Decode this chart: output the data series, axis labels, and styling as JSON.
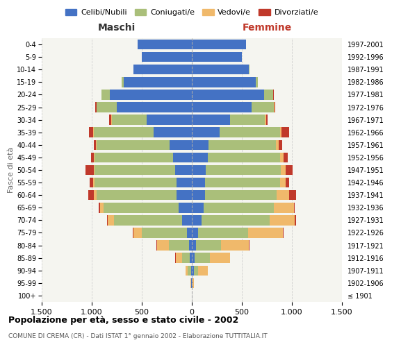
{
  "age_groups": [
    "100+",
    "95-99",
    "90-94",
    "85-89",
    "80-84",
    "75-79",
    "70-74",
    "65-69",
    "60-64",
    "55-59",
    "50-54",
    "45-49",
    "40-44",
    "35-39",
    "30-34",
    "25-29",
    "20-24",
    "15-19",
    "10-14",
    "5-9",
    "0-4"
  ],
  "birth_years": [
    "≤ 1901",
    "1902-1906",
    "1907-1911",
    "1912-1916",
    "1917-1921",
    "1922-1926",
    "1927-1931",
    "1932-1936",
    "1937-1941",
    "1942-1946",
    "1947-1951",
    "1952-1956",
    "1957-1961",
    "1962-1966",
    "1967-1971",
    "1972-1976",
    "1977-1981",
    "1982-1986",
    "1987-1991",
    "1992-1996",
    "1997-2001"
  ],
  "colors": {
    "celibi": "#4472C4",
    "coniugati": "#AABF7A",
    "vedovi": "#F0B96B",
    "divorziati": "#C0392B"
  },
  "maschi": {
    "celibi": [
      2,
      5,
      10,
      20,
      30,
      50,
      100,
      130,
      150,
      150,
      170,
      190,
      220,
      380,
      450,
      750,
      820,
      680,
      580,
      500,
      540
    ],
    "coniugati": [
      0,
      5,
      30,
      80,
      200,
      450,
      680,
      750,
      800,
      820,
      800,
      780,
      730,
      600,
      350,
      200,
      80,
      20,
      5,
      0,
      0
    ],
    "vedovi": [
      0,
      5,
      20,
      60,
      120,
      80,
      60,
      40,
      30,
      15,
      10,
      8,
      5,
      5,
      3,
      2,
      0,
      0,
      0,
      0,
      0
    ],
    "divorziati": [
      0,
      0,
      0,
      5,
      5,
      10,
      10,
      10,
      55,
      35,
      80,
      30,
      25,
      45,
      20,
      10,
      5,
      0,
      0,
      0,
      0
    ]
  },
  "femmine": {
    "nubili": [
      2,
      5,
      20,
      30,
      40,
      60,
      100,
      120,
      130,
      130,
      140,
      160,
      170,
      280,
      380,
      600,
      720,
      640,
      570,
      500,
      540
    ],
    "coniugate": [
      0,
      5,
      40,
      150,
      250,
      500,
      680,
      700,
      720,
      750,
      750,
      720,
      670,
      600,
      350,
      220,
      90,
      20,
      5,
      0,
      0
    ],
    "vedove": [
      0,
      10,
      100,
      200,
      280,
      350,
      250,
      200,
      120,
      60,
      50,
      40,
      30,
      15,
      10,
      5,
      3,
      0,
      0,
      0,
      0
    ],
    "divorziate": [
      0,
      0,
      0,
      5,
      5,
      10,
      10,
      10,
      70,
      35,
      70,
      40,
      30,
      80,
      20,
      10,
      5,
      0,
      0,
      0,
      0
    ]
  },
  "xlim": [
    -1500,
    1500
  ],
  "xticks": [
    -1500,
    -1000,
    -500,
    0,
    500,
    1000,
    1500
  ],
  "xticklabels": [
    "1.500",
    "1.000",
    "500",
    "0",
    "500",
    "1.000",
    "1.500"
  ],
  "title": "Popolazione per età, sesso e stato civile - 2002",
  "subtitle": "COMUNE DI CREMA (CR) - Dati ISTAT 1° gennaio 2002 - Elaborazione TUTTITALIA.IT",
  "ylabel_left": "Fasce di età",
  "maschi_label": "Maschi",
  "femmine_label": "Femmine",
  "legend_labels": [
    "Celibi/Nubili",
    "Coniugati/e",
    "Vedovi/e",
    "Divorziati/e"
  ],
  "background_color": "#FFFFFF",
  "bar_height": 0.8,
  "maschi_color": "#333333",
  "femmine_color": "#C0392B",
  "grid_color": "#CCCCCC",
  "axes_bg": "#F5F5F0"
}
